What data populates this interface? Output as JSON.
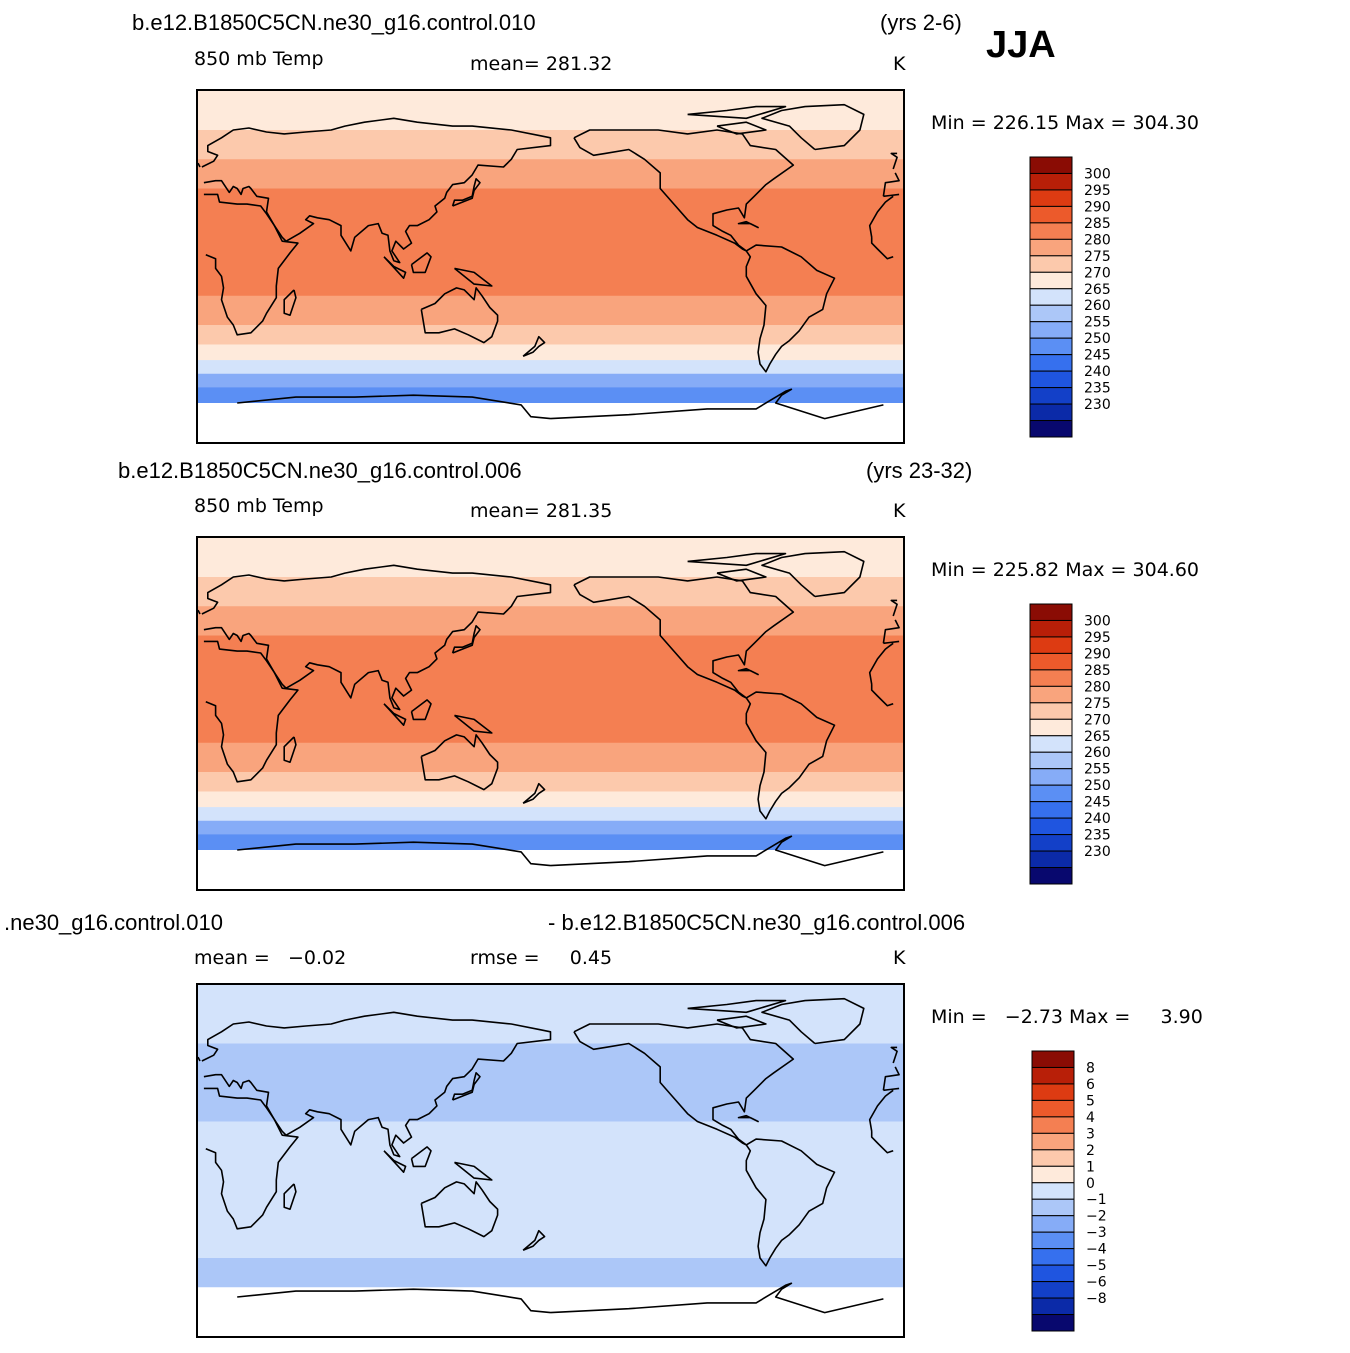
{
  "season": "JJA",
  "colors": {
    "temp_scale": [
      "#08086e",
      "#0b2aa8",
      "#1340c8",
      "#1f55e0",
      "#3670ee",
      "#5b8ff4",
      "#86acf7",
      "#acc7f8",
      "#d3e3fb",
      "#feeadb",
      "#fcc9ac",
      "#f9a47d",
      "#f47f52",
      "#ec5a2b",
      "#dd3b12",
      "#b81f08",
      "#8a0c04"
    ],
    "diff_scale": [
      "#08086e",
      "#0b2aa8",
      "#1340c8",
      "#1f55e0",
      "#3670ee",
      "#5b8ff4",
      "#86acf7",
      "#acc7f8",
      "#d3e3fb",
      "#feeadb",
      "#fcc9ac",
      "#f9a47d",
      "#f47f52",
      "#ec5a2b",
      "#dd3b12",
      "#b81f08",
      "#8a0c04"
    ]
  },
  "panels": [
    {
      "case": "b.e12.B1850C5CN.ne30_g16.control.010",
      "years": "(yrs 2-6)",
      "variable": "850 mb Temp",
      "stat1": "mean= 281.32",
      "units": "K",
      "minmax": "Min = 226.15 Max = 304.30"
    },
    {
      "case": "b.e12.B1850C5CN.ne30_g16.control.006",
      "years": "(yrs 23-32)",
      "variable": "850 mb Temp",
      "stat1": "mean= 281.35",
      "units": "K",
      "minmax": "Min = 225.82 Max = 304.60"
    },
    {
      "case_left": ".ne30_g16.control.010",
      "case_right": "- b.e12.B1850C5CN.ne30_g16.control.006",
      "stat1": "mean =   −0.02",
      "stat2": "rmse =     0.45",
      "units": "K",
      "minmax": "Min =   −2.73 Max =     3.90"
    }
  ],
  "chart_data": [
    {
      "type": "heatmap",
      "title": "b.e12.B1850C5CN.ne30_g16.control.010 (yrs 2-6)",
      "subtitle": "850 mb Temp",
      "units": "K",
      "mean": 281.32,
      "min": 226.15,
      "max": 304.3,
      "colorbar_levels": [
        300,
        295,
        290,
        285,
        280,
        275,
        270,
        265,
        260,
        255,
        250,
        245,
        240,
        235,
        230
      ],
      "zonal_bands": [
        {
          "lat_from": 90,
          "lat_to": 70,
          "value": 272
        },
        {
          "lat_from": 70,
          "lat_to": 55,
          "value": 278
        },
        {
          "lat_from": 55,
          "lat_to": 40,
          "value": 283
        },
        {
          "lat_from": 40,
          "lat_to": -15,
          "value": 288
        },
        {
          "lat_from": -15,
          "lat_to": -30,
          "value": 284
        },
        {
          "lat_from": -30,
          "lat_to": -40,
          "value": 278
        },
        {
          "lat_from": -40,
          "lat_to": -48,
          "value": 272
        },
        {
          "lat_from": -48,
          "lat_to": -55,
          "value": 266
        },
        {
          "lat_from": -55,
          "lat_to": -62,
          "value": 258
        },
        {
          "lat_from": -62,
          "lat_to": -70,
          "value": 252
        },
        {
          "lat_from": -70,
          "lat_to": -90,
          "value": null
        }
      ]
    },
    {
      "type": "heatmap",
      "title": "b.e12.B1850C5CN.ne30_g16.control.006 (yrs 23-32)",
      "subtitle": "850 mb Temp",
      "units": "K",
      "mean": 281.35,
      "min": 225.82,
      "max": 304.6,
      "colorbar_levels": [
        300,
        295,
        290,
        285,
        280,
        275,
        270,
        265,
        260,
        255,
        250,
        245,
        240,
        235,
        230
      ],
      "zonal_bands": [
        {
          "lat_from": 90,
          "lat_to": 70,
          "value": 272
        },
        {
          "lat_from": 70,
          "lat_to": 55,
          "value": 278
        },
        {
          "lat_from": 55,
          "lat_to": 40,
          "value": 283
        },
        {
          "lat_from": 40,
          "lat_to": -15,
          "value": 288
        },
        {
          "lat_from": -15,
          "lat_to": -30,
          "value": 284
        },
        {
          "lat_from": -30,
          "lat_to": -40,
          "value": 278
        },
        {
          "lat_from": -40,
          "lat_to": -48,
          "value": 272
        },
        {
          "lat_from": -48,
          "lat_to": -55,
          "value": 266
        },
        {
          "lat_from": -55,
          "lat_to": -62,
          "value": 258
        },
        {
          "lat_from": -62,
          "lat_to": -70,
          "value": 252
        },
        {
          "lat_from": -70,
          "lat_to": -90,
          "value": null
        }
      ]
    },
    {
      "type": "heatmap",
      "title": ".ne30_g16.control.010 - b.e12.B1850C5CN.ne30_g16.control.006",
      "units": "K",
      "mean": -0.02,
      "rmse": 0.45,
      "min": -2.73,
      "max": 3.9,
      "colorbar_levels": [
        "8",
        "6",
        "5",
        "4",
        "3",
        "2",
        "1",
        "0",
        "−1",
        "−2",
        "−3",
        "−4",
        "−5",
        "−6",
        "−8"
      ],
      "zonal_bands": [
        {
          "lat_from": 90,
          "lat_to": 60,
          "value": 0.5
        },
        {
          "lat_from": 60,
          "lat_to": 20,
          "value": -0.5
        },
        {
          "lat_from": 20,
          "lat_to": -30,
          "value": 0.5
        },
        {
          "lat_from": -30,
          "lat_to": -50,
          "value": 0.5
        },
        {
          "lat_from": -50,
          "lat_to": -65,
          "value": -0.5
        },
        {
          "lat_from": -65,
          "lat_to": -90,
          "value": null
        }
      ]
    }
  ]
}
